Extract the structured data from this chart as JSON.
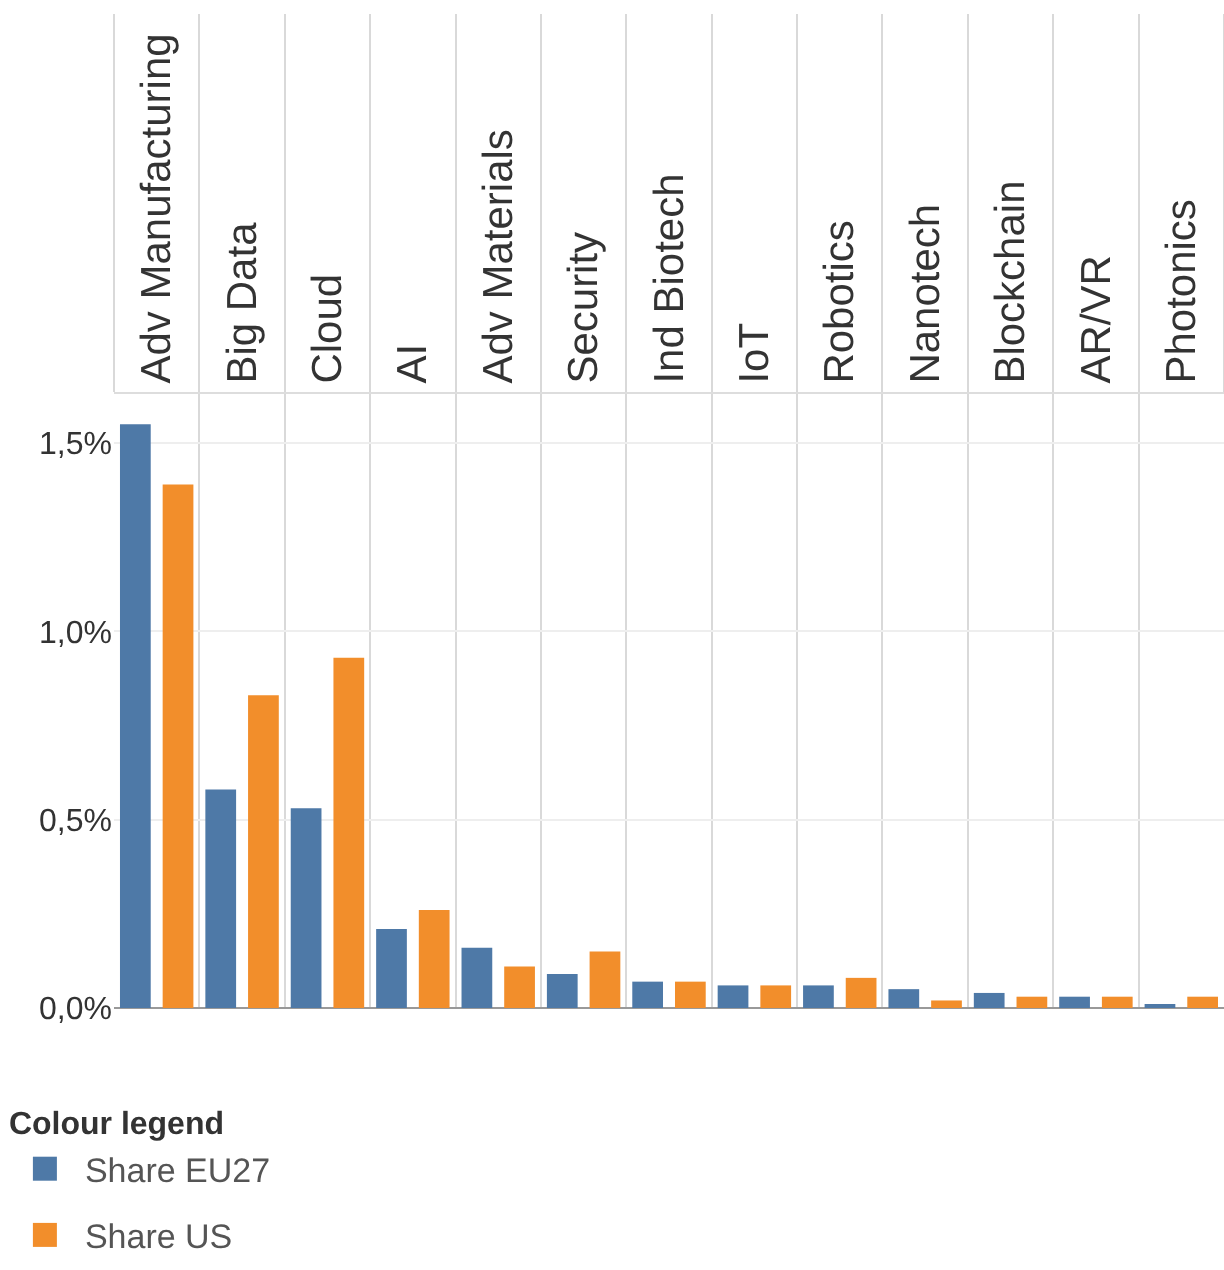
{
  "chart_data": {
    "type": "bar",
    "categories": [
      "Adv Manufacturing",
      "Big Data",
      "Cloud",
      "AI",
      "Adv Materials",
      "Security",
      "Ind Biotech",
      "IoT",
      "Robotics",
      "Nanotech",
      "Blockchain",
      "AR/VR",
      "Photonics"
    ],
    "series": [
      {
        "name": "Share EU27",
        "color": "#4e79a7",
        "values": [
          1.55,
          0.58,
          0.53,
          0.21,
          0.16,
          0.09,
          0.07,
          0.06,
          0.06,
          0.05,
          0.04,
          0.03,
          0.01
        ]
      },
      {
        "name": "Share US",
        "color": "#f28e2b",
        "values": [
          1.39,
          0.83,
          0.93,
          0.26,
          0.11,
          0.15,
          0.07,
          0.06,
          0.08,
          0.02,
          0.03,
          0.03,
          0.03
        ]
      }
    ],
    "legend_title": "Colour legend",
    "ylim": [
      0,
      1.63
    ],
    "yticks": [
      {
        "value": 0,
        "label": "0,0%"
      },
      {
        "value": 0.5,
        "label": "0,5%"
      },
      {
        "value": 1.0,
        "label": "1,0%"
      },
      {
        "value": 1.5,
        "label": "1,5%"
      }
    ],
    "grid": true,
    "legend": "bottom left"
  }
}
